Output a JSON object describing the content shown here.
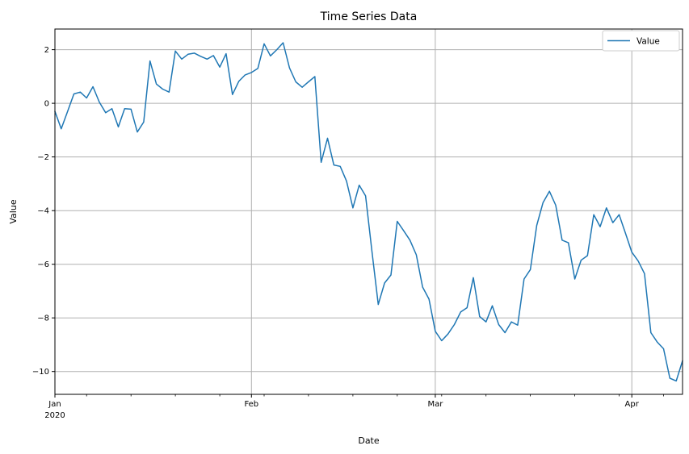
{
  "figure": {
    "title": "Time Series Data",
    "xlabel": "Date",
    "ylabel": "Value",
    "background_color": "#ffffff",
    "text_color": "#000000",
    "grid_color": "#b0b0b0",
    "spine_color": "#000000"
  },
  "legend": {
    "position": "upper right",
    "border_color": "#cccccc",
    "entries": [
      {
        "label": "Value",
        "color": "#1f77b4"
      }
    ]
  },
  "axes": {
    "x_major_ticks": [
      {
        "day": 0,
        "label": "Jan",
        "sublabel": "2020"
      },
      {
        "day": 31,
        "label": "Feb"
      },
      {
        "day": 60,
        "label": "Mar"
      },
      {
        "day": 91,
        "label": "Apr"
      }
    ],
    "x_minor_tick_days": [
      5,
      12,
      19,
      26,
      33,
      40,
      47,
      54,
      61,
      68,
      75,
      82,
      89,
      96
    ],
    "y_ticks": [
      2,
      0,
      -2,
      -4,
      -6,
      -8,
      -10
    ],
    "y_tick_labels": [
      "2",
      "0",
      "−2",
      "−4",
      "−6",
      "−8",
      "−10"
    ],
    "ylim": [
      -10.85,
      2.77
    ]
  },
  "chart_data": {
    "type": "line",
    "title": "Time Series Data",
    "xlabel": "Date",
    "ylabel": "Value",
    "x_start_date": "2020-01-01",
    "x_end_date": "2020-04-09",
    "x_frequency": "daily",
    "n_points": 100,
    "grid": true,
    "legend_position": "upper right",
    "ylim": [
      -10.85,
      2.77
    ],
    "series": [
      {
        "name": "Value",
        "color": "#1f77b4",
        "values": [
          -0.3,
          -0.95,
          -0.3,
          0.35,
          0.42,
          0.2,
          0.62,
          0.05,
          -0.35,
          -0.2,
          -0.88,
          -0.2,
          -0.22,
          -1.07,
          -0.7,
          1.58,
          0.72,
          0.53,
          0.42,
          1.95,
          1.65,
          1.83,
          1.87,
          1.75,
          1.65,
          1.78,
          1.35,
          1.85,
          0.33,
          0.82,
          1.06,
          1.15,
          1.3,
          2.22,
          1.77,
          2.0,
          2.26,
          1.32,
          0.8,
          0.6,
          0.8,
          1.0,
          -2.2,
          -1.3,
          -2.3,
          -2.35,
          -2.9,
          -3.9,
          -3.05,
          -3.45,
          -5.5,
          -7.5,
          -6.7,
          -6.4,
          -4.4,
          -4.75,
          -5.1,
          -5.65,
          -6.85,
          -7.3,
          -8.5,
          -8.85,
          -8.6,
          -8.25,
          -7.78,
          -7.62,
          -6.5,
          -7.95,
          -8.15,
          -7.55,
          -8.25,
          -8.55,
          -8.15,
          -8.27,
          -6.55,
          -6.2,
          -4.55,
          -3.7,
          -3.28,
          -3.8,
          -5.1,
          -5.2,
          -6.55,
          -5.85,
          -5.68,
          -4.15,
          -4.6,
          -3.9,
          -4.45,
          -4.15,
          -4.85,
          -5.55,
          -5.88,
          -6.35,
          -8.55,
          -8.9,
          -9.15,
          -10.25,
          -10.35,
          -9.6
        ]
      }
    ]
  }
}
